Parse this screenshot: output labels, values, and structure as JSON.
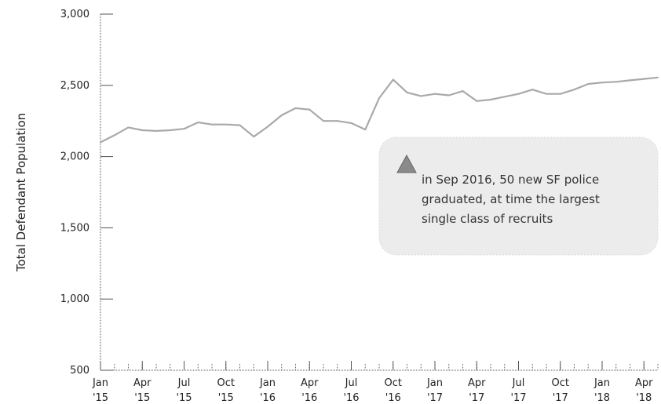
{
  "chart_data": {
    "type": "line",
    "ylabel": "Total Defendant Population",
    "ylim": [
      500,
      3000
    ],
    "yticks": [
      500,
      1000,
      1500,
      2000,
      2500,
      3000
    ],
    "ytick_labels": [
      "500",
      "1,000",
      "1,500",
      "2,000",
      "2,500",
      "3,000"
    ],
    "x_start": "2015-01",
    "x_end": "2018-05",
    "xticks": [
      {
        "x": "2015-01",
        "line1": "Jan",
        "line2": "'15"
      },
      {
        "x": "2015-04",
        "line1": "Apr",
        "line2": "'15"
      },
      {
        "x": "2015-07",
        "line1": "Jul",
        "line2": "'15"
      },
      {
        "x": "2015-10",
        "line1": "Oct",
        "line2": "'15"
      },
      {
        "x": "2016-01",
        "line1": "Jan",
        "line2": "'16"
      },
      {
        "x": "2016-04",
        "line1": "Apr",
        "line2": "'16"
      },
      {
        "x": "2016-07",
        "line1": "Jul",
        "line2": "'16"
      },
      {
        "x": "2016-10",
        "line1": "Oct",
        "line2": "'16"
      },
      {
        "x": "2017-01",
        "line1": "Jan",
        "line2": "'17"
      },
      {
        "x": "2017-04",
        "line1": "Apr",
        "line2": "'17"
      },
      {
        "x": "2017-07",
        "line1": "Jul",
        "line2": "'17"
      },
      {
        "x": "2017-10",
        "line1": "Oct",
        "line2": "'17"
      },
      {
        "x": "2018-01",
        "line1": "Jan",
        "line2": "'18"
      },
      {
        "x": "2018-04",
        "line1": "Apr",
        "line2": "'18"
      }
    ],
    "series": [
      {
        "x": [
          "2015-01",
          "2015-02",
          "2015-03",
          "2015-04",
          "2015-05",
          "2015-06",
          "2015-07",
          "2015-08",
          "2015-09",
          "2015-10",
          "2015-11",
          "2015-12",
          "2016-01",
          "2016-02",
          "2016-03",
          "2016-04",
          "2016-05",
          "2016-06",
          "2016-07",
          "2016-08",
          "2016-09",
          "2016-10",
          "2016-11",
          "2016-12",
          "2017-01",
          "2017-02",
          "2017-03",
          "2017-04",
          "2017-05",
          "2017-06",
          "2017-07",
          "2017-08",
          "2017-09",
          "2017-10",
          "2017-11",
          "2017-12",
          "2018-01",
          "2018-02",
          "2018-03",
          "2018-04",
          "2018-05"
        ],
        "y": [
          2100,
          2150,
          2205,
          2185,
          2180,
          2185,
          2195,
          2240,
          2225,
          2225,
          2220,
          2140,
          2210,
          2290,
          2340,
          2330,
          2250,
          2250,
          2235,
          2190,
          2410,
          2540,
          2450,
          2425,
          2440,
          2430,
          2460,
          2390,
          2400,
          2420,
          2440,
          2470,
          2440,
          2440,
          2470,
          2510,
          2520,
          2525,
          2535,
          2545,
          2555
        ],
        "color": "#a9a9a9"
      }
    ],
    "annotation": {
      "text_lines": [
        "in Sep 2016, 50 new SF police",
        "graduated, at time the largest",
        "single class of recruits"
      ],
      "marker_color": "#8a8a8a",
      "box_color": "#ececec"
    },
    "grid": false
  }
}
